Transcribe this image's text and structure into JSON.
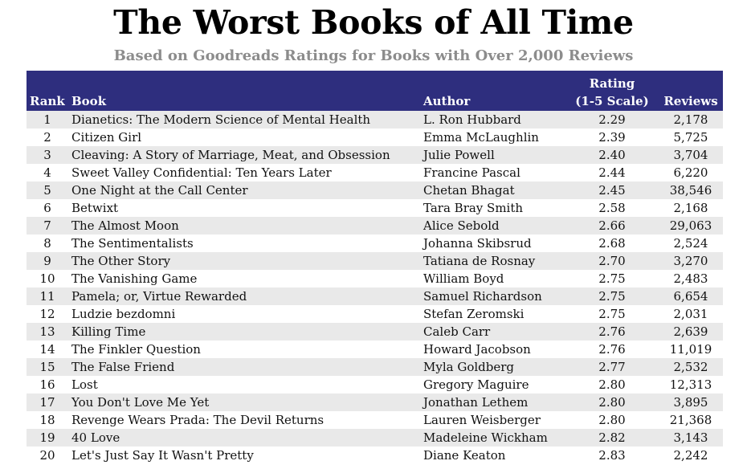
{
  "title": "The Worst Books of All Time",
  "subtitle": "Based on Goodreads Ratings for Books with Over 2,000 Reviews",
  "header": {
    "rank": "Rank",
    "book": "Book",
    "author": "Author",
    "rating_line1": "Rating",
    "rating_line2": "(1-5 Scale)",
    "reviews": "Reviews"
  },
  "colors": {
    "header_bg": "#2e2e7e",
    "stripe": "#e9e9e9",
    "subtitle": "#8c8c8c"
  },
  "rows": [
    {
      "rank": "1",
      "book": "Dianetics: The Modern Science of Mental Health",
      "author": "L. Ron Hubbard",
      "rating": "2.29",
      "reviews": "2,178"
    },
    {
      "rank": "2",
      "book": "Citizen Girl",
      "author": "Emma McLaughlin",
      "rating": "2.39",
      "reviews": "5,725"
    },
    {
      "rank": "3",
      "book": "Cleaving: A Story of Marriage, Meat, and Obsession",
      "author": "Julie Powell",
      "rating": "2.40",
      "reviews": "3,704"
    },
    {
      "rank": "4",
      "book": "Sweet Valley Confidential: Ten Years Later",
      "author": "Francine Pascal",
      "rating": "2.44",
      "reviews": "6,220"
    },
    {
      "rank": "5",
      "book": "One Night at the Call Center",
      "author": "Chetan Bhagat",
      "rating": "2.45",
      "reviews": "38,546"
    },
    {
      "rank": "6",
      "book": "Betwixt",
      "author": "Tara Bray Smith",
      "rating": "2.58",
      "reviews": "2,168"
    },
    {
      "rank": "7",
      "book": "The Almost Moon",
      "author": "Alice Sebold",
      "rating": "2.66",
      "reviews": "29,063"
    },
    {
      "rank": "8",
      "book": "The Sentimentalists",
      "author": "Johanna Skibsrud",
      "rating": "2.68",
      "reviews": "2,524"
    },
    {
      "rank": "9",
      "book": "The Other Story",
      "author": "Tatiana de Rosnay",
      "rating": "2.70",
      "reviews": "3,270"
    },
    {
      "rank": "10",
      "book": "The Vanishing Game",
      "author": "William Boyd",
      "rating": "2.75",
      "reviews": "2,483"
    },
    {
      "rank": "11",
      "book": "Pamela; or, Virtue Rewarded",
      "author": "Samuel Richardson",
      "rating": "2.75",
      "reviews": "6,654"
    },
    {
      "rank": "12",
      "book": "Ludzie bezdomni",
      "author": "Stefan Zeromski",
      "rating": "2.75",
      "reviews": "2,031"
    },
    {
      "rank": "13",
      "book": "Killing Time",
      "author": "Caleb Carr",
      "rating": "2.76",
      "reviews": "2,639"
    },
    {
      "rank": "14",
      "book": "The Finkler Question",
      "author": "Howard Jacobson",
      "rating": "2.76",
      "reviews": "11,019"
    },
    {
      "rank": "15",
      "book": "The False Friend",
      "author": "Myla Goldberg",
      "rating": "2.77",
      "reviews": "2,532"
    },
    {
      "rank": "16",
      "book": "Lost",
      "author": "Gregory Maguire",
      "rating": "2.80",
      "reviews": "12,313"
    },
    {
      "rank": "17",
      "book": "You Don't Love Me Yet",
      "author": "Jonathan Lethem",
      "rating": "2.80",
      "reviews": "3,895"
    },
    {
      "rank": "18",
      "book": "Revenge Wears Prada: The Devil Returns",
      "author": "Lauren Weisberger",
      "rating": "2.80",
      "reviews": "21,368"
    },
    {
      "rank": "19",
      "book": "40 Love",
      "author": "Madeleine Wickham",
      "rating": "2.82",
      "reviews": "3,143"
    },
    {
      "rank": "20",
      "book": "Let's Just Say It Wasn't Pretty",
      "author": "Diane Keaton",
      "rating": "2.83",
      "reviews": "2,242"
    }
  ]
}
